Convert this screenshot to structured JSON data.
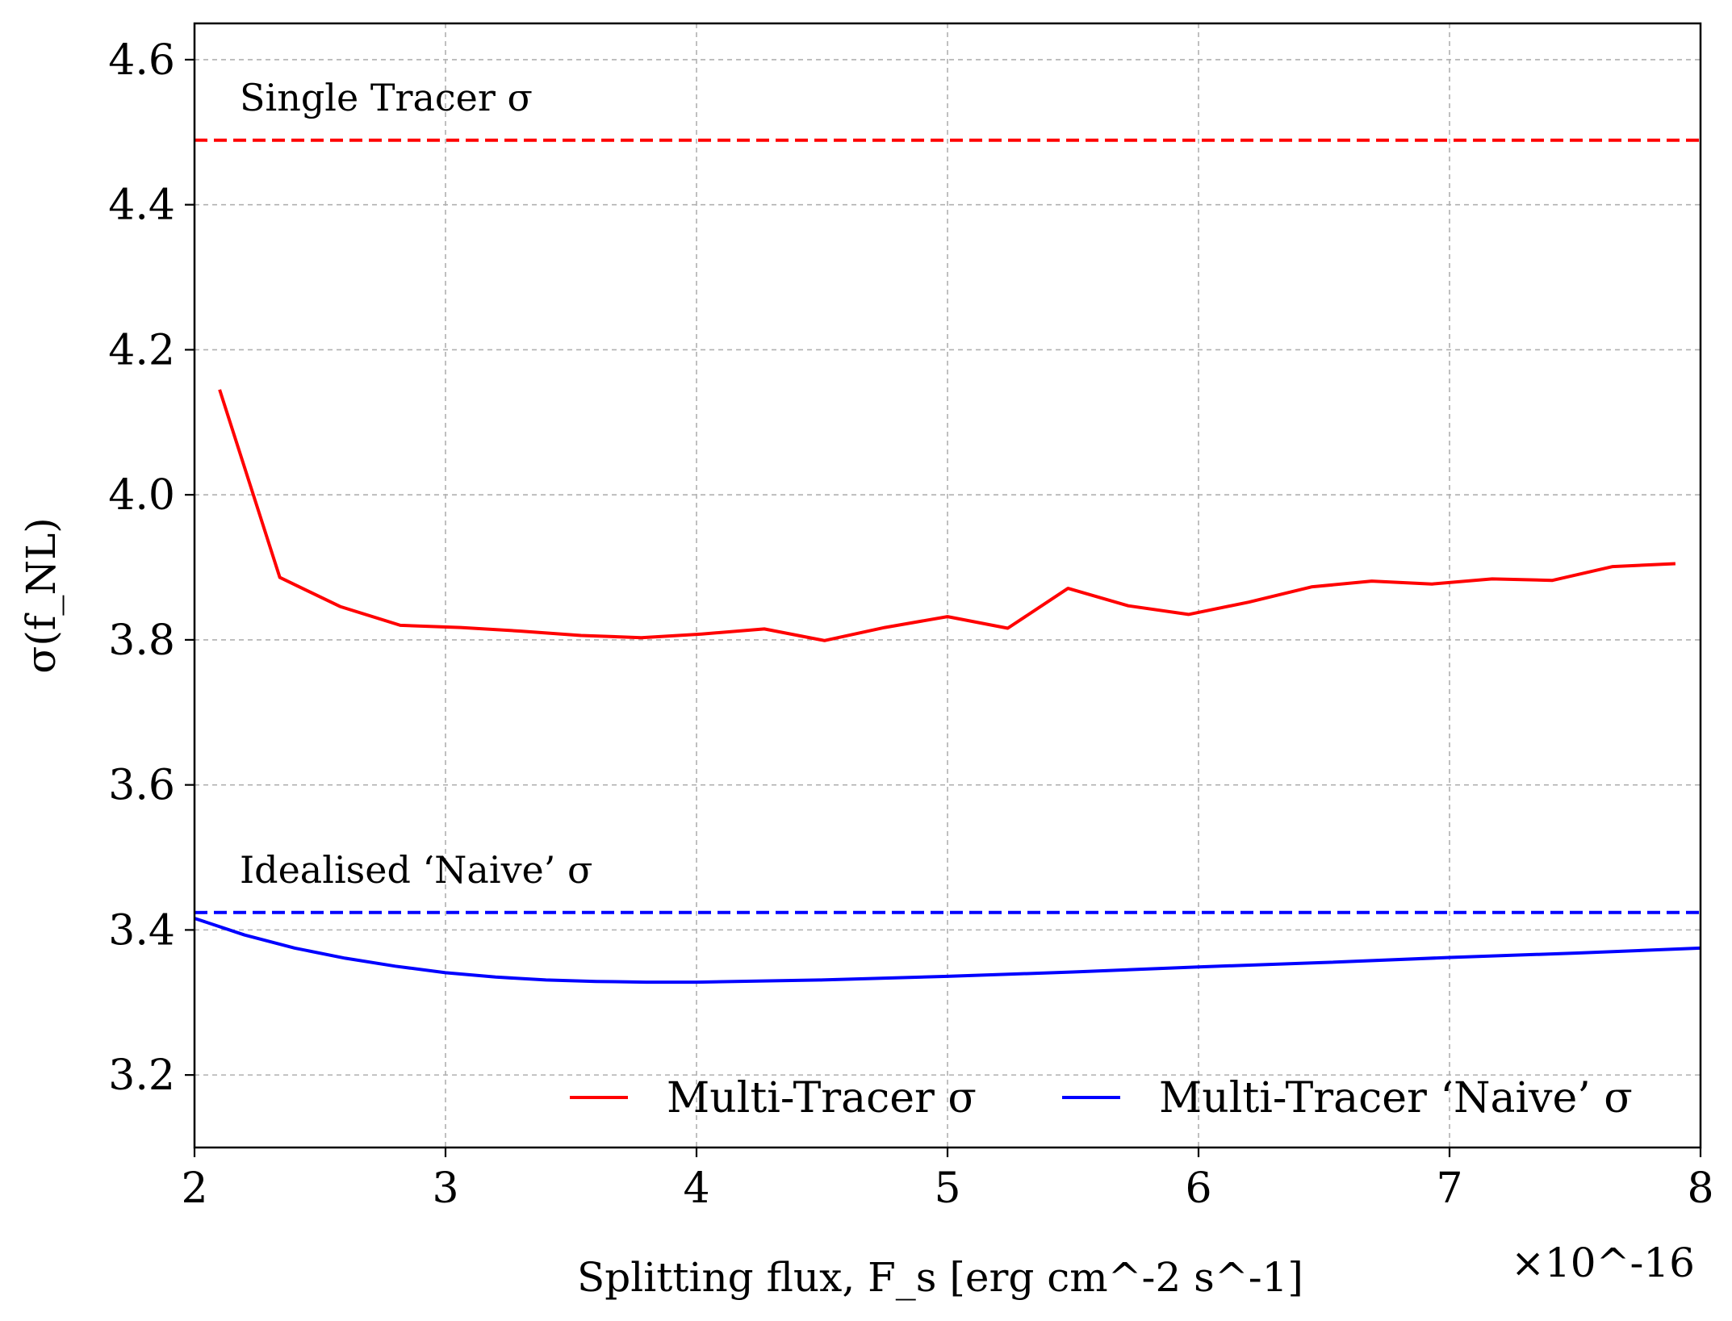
{
  "chart_data": {
    "type": "line",
    "xlabel": "Splitting flux, F_s   [erg cm^-2 s^-1]",
    "ylabel": "σ(f_NL)",
    "x_scale_label": "×10^-16",
    "xlim": [
      2,
      8
    ],
    "ylim": [
      3.1,
      4.65
    ],
    "x_ticks": [
      2,
      3,
      4,
      5,
      6,
      7,
      8
    ],
    "y_ticks": [
      3.2,
      3.4,
      3.6,
      3.8,
      4.0,
      4.2,
      4.4,
      4.6
    ],
    "grid": true,
    "legend_position": "lower-right",
    "series": [
      {
        "name": "Multi-Tracer σ",
        "color": "#ff0000",
        "style": "solid",
        "x": [
          2.1,
          2.34,
          2.58,
          2.82,
          3.06,
          3.3,
          3.54,
          3.78,
          4.02,
          4.27,
          4.51,
          4.75,
          5.0,
          5.24,
          5.48,
          5.72,
          5.96,
          6.2,
          6.45,
          6.69,
          6.93,
          7.17,
          7.41,
          7.65,
          7.9
        ],
        "y": [
          4.145,
          3.886,
          3.846,
          3.82,
          3.817,
          3.812,
          3.806,
          3.803,
          3.808,
          3.815,
          3.799,
          3.817,
          3.832,
          3.816,
          3.871,
          3.847,
          3.835,
          3.852,
          3.873,
          3.881,
          3.877,
          3.884,
          3.882,
          3.901,
          3.905
        ]
      },
      {
        "name": "Multi-Tracer ‘Naive’ σ",
        "color": "#0000ff",
        "style": "solid",
        "x": [
          2.0,
          2.2,
          2.4,
          2.6,
          2.8,
          3.0,
          3.2,
          3.4,
          3.6,
          3.8,
          4.0,
          4.5,
          5.0,
          5.5,
          6.0,
          6.5,
          7.0,
          7.5,
          8.0
        ],
        "y": [
          3.416,
          3.393,
          3.375,
          3.361,
          3.35,
          3.341,
          3.335,
          3.331,
          3.329,
          3.328,
          3.328,
          3.331,
          3.336,
          3.342,
          3.349,
          3.355,
          3.362,
          3.368,
          3.375
        ]
      },
      {
        "name": "Single Tracer σ",
        "color": "#ff0000",
        "style": "dashed",
        "x": [
          2,
          8
        ],
        "y": [
          4.489,
          4.489
        ]
      },
      {
        "name": "Idealised ‘Naive’ σ",
        "color": "#0000ff",
        "style": "dashed",
        "x": [
          2,
          8
        ],
        "y": [
          3.424,
          3.424
        ]
      }
    ],
    "annotations": [
      {
        "text": "Single Tracer σ",
        "x": 2.18,
        "y": 4.53
      },
      {
        "text": "Idealised ‘Naive’ σ",
        "x": 2.18,
        "y": 3.465
      }
    ]
  }
}
